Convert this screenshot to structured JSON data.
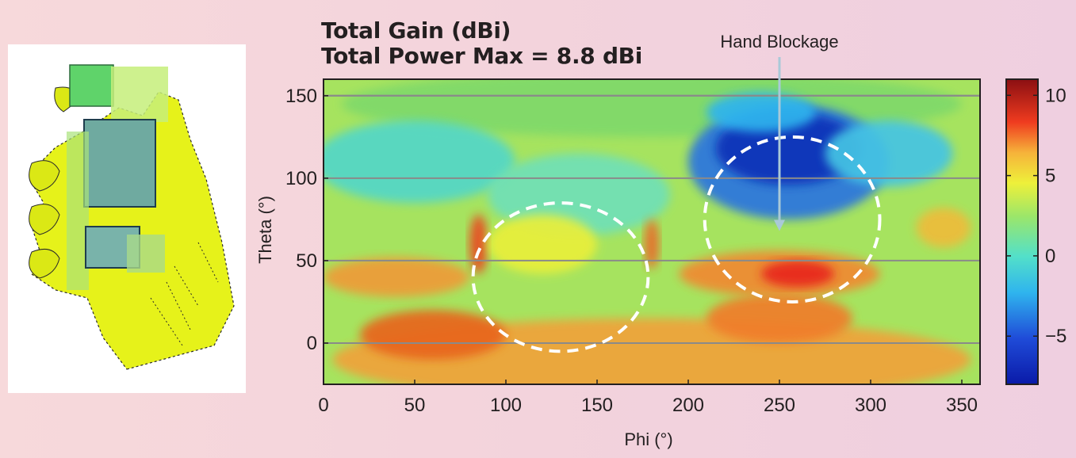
{
  "chart_data": {
    "type": "heatmap",
    "title": "Total Gain (dBi)",
    "subtitle": "Total Power Max = 8.8 dBi",
    "xlabel": "Phi (°)",
    "ylabel": "Theta (°)",
    "xlim": [
      0,
      360
    ],
    "ylim": [
      -25,
      160
    ],
    "x_ticks": [
      0,
      50,
      100,
      150,
      200,
      250,
      300,
      350
    ],
    "y_ticks": [
      0,
      50,
      100,
      150
    ],
    "colorbar": {
      "min": -8,
      "max": 11,
      "ticks": [
        10,
        5,
        0,
        -5
      ],
      "tick_labels": [
        "10",
        "5",
        "0",
        "−5"
      ],
      "colormap": "jet"
    },
    "annotations": [
      {
        "text": "Hand Blockage",
        "arrow_to": {
          "phi": 250,
          "theta": 68
        }
      }
    ],
    "circles": [
      {
        "center": {
          "phi": 130,
          "theta": 40
        },
        "radius_phi": 48,
        "radius_theta": 45
      },
      {
        "center": {
          "phi": 257,
          "theta": 75
        },
        "radius_phi": 48,
        "radius_theta": 50
      }
    ],
    "regions": [
      {
        "name": "low-gain",
        "center": {
          "phi": 250,
          "theta": 110
        },
        "value": -7
      },
      {
        "name": "high-gain",
        "center": {
          "phi": 260,
          "theta": 40
        },
        "value": 9
      }
    ],
    "grid": true
  }
}
